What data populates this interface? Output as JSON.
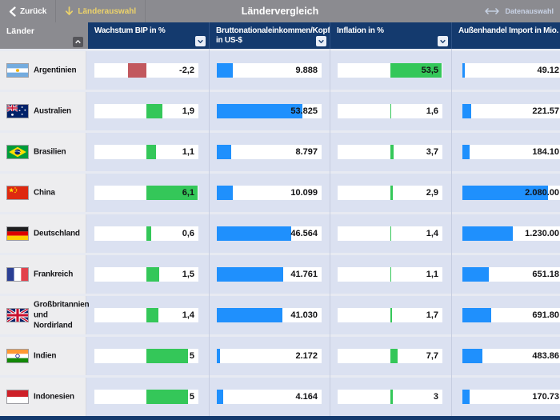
{
  "topbar": {
    "back_label": "Zurück",
    "laenderauswahl_label": "Länderauswahl",
    "title": "Ländervergleich",
    "datenauswahl_label": "Datenauswahl"
  },
  "header": {
    "laender_label": "Länder"
  },
  "icons": {
    "back": "chevron-left-icon",
    "laenderauswahl": "arrow-down-icon",
    "datenauswahl": "arrows-left-right-icon",
    "laender_sort": "chevron-up-icon",
    "column_sort": "chevron-down-icon"
  },
  "colors": {
    "navy": "#143a6e",
    "topbar_gray": "#8b8b90",
    "body_bg": "#dbe1f1",
    "country_cell_bg": "#ededef",
    "bar_green": "#34c759",
    "bar_red": "#c2585e",
    "bar_blue": "#1f90fd",
    "yellow_accent": "#ecd26a"
  },
  "columns": [
    {
      "id": "bip",
      "label": "Wachstum BIP in %",
      "type": "centered",
      "half_range": 6.2,
      "color_positive": "#34c759",
      "color_negative": "#c2585e",
      "sort_icon_visible": true
    },
    {
      "id": "gni",
      "label": "Bruttonationaleinkommen/Kopf\nin US-$",
      "type": "left",
      "max": 65600,
      "color": "#1f90fd",
      "sort_icon_visible": true
    },
    {
      "id": "inflation",
      "label": "Inflation in %",
      "type": "centered",
      "half_range": 54,
      "color_positive": "#34c759",
      "color_negative": "#c2585e",
      "sort_icon_visible": true
    },
    {
      "id": "import",
      "label": "Außenhandel Import in Mio. US-$",
      "type": "left",
      "max": 2550000,
      "color": "#1f90fd",
      "sort_icon_visible": false,
      "value_flush_right": true
    }
  ],
  "rows": [
    {
      "country": "Argentinien",
      "flag": "ar",
      "values": {
        "bip": {
          "v": -2.2,
          "label": "-2,2"
        },
        "gni": {
          "v": 9888,
          "label": "9.888"
        },
        "inflation": {
          "v": 53.5,
          "label": "53,5"
        },
        "import": {
          "v": 49120,
          "label": "49.12"
        }
      }
    },
    {
      "country": "Australien",
      "flag": "au",
      "values": {
        "bip": {
          "v": 1.9,
          "label": "1,9"
        },
        "gni": {
          "v": 53825,
          "label": "53.825"
        },
        "inflation": {
          "v": 1.6,
          "label": "1,6"
        },
        "import": {
          "v": 221570,
          "label": "221.57"
        }
      }
    },
    {
      "country": "Brasilien",
      "flag": "br",
      "values": {
        "bip": {
          "v": 1.1,
          "label": "1,1"
        },
        "gni": {
          "v": 8797,
          "label": "8.797"
        },
        "inflation": {
          "v": 3.7,
          "label": "3,7"
        },
        "import": {
          "v": 184100,
          "label": "184.10"
        }
      }
    },
    {
      "country": "China",
      "flag": "cn",
      "values": {
        "bip": {
          "v": 6.1,
          "label": "6,1"
        },
        "gni": {
          "v": 10099,
          "label": "10.099"
        },
        "inflation": {
          "v": 2.9,
          "label": "2,9"
        },
        "import": {
          "v": 2080000,
          "label": "2.080.00"
        }
      }
    },
    {
      "country": "Deutschland",
      "flag": "de",
      "values": {
        "bip": {
          "v": 0.6,
          "label": "0,6"
        },
        "gni": {
          "v": 46564,
          "label": "46.564"
        },
        "inflation": {
          "v": 1.4,
          "label": "1,4"
        },
        "import": {
          "v": 1230000,
          "label": "1.230.00"
        }
      }
    },
    {
      "country": "Frankreich",
      "flag": "fr",
      "values": {
        "bip": {
          "v": 1.5,
          "label": "1,5"
        },
        "gni": {
          "v": 41761,
          "label": "41.761"
        },
        "inflation": {
          "v": 1.1,
          "label": "1,1"
        },
        "import": {
          "v": 651180,
          "label": "651.18"
        }
      }
    },
    {
      "country": "Großbritannien und Nordirland",
      "flag": "gb",
      "values": {
        "bip": {
          "v": 1.4,
          "label": "1,4"
        },
        "gni": {
          "v": 41030,
          "label": "41.030"
        },
        "inflation": {
          "v": 1.7,
          "label": "1,7"
        },
        "import": {
          "v": 691800,
          "label": "691.80"
        }
      }
    },
    {
      "country": "Indien",
      "flag": "in",
      "values": {
        "bip": {
          "v": 5,
          "label": "5"
        },
        "gni": {
          "v": 2172,
          "label": "2.172"
        },
        "inflation": {
          "v": 7.7,
          "label": "7,7"
        },
        "import": {
          "v": 483860,
          "label": "483.86"
        }
      }
    },
    {
      "country": "Indonesien",
      "flag": "id",
      "values": {
        "bip": {
          "v": 5,
          "label": "5"
        },
        "gni": {
          "v": 4164,
          "label": "4.164"
        },
        "inflation": {
          "v": 3,
          "label": "3"
        },
        "import": {
          "v": 170730,
          "label": "170.73"
        }
      }
    }
  ]
}
